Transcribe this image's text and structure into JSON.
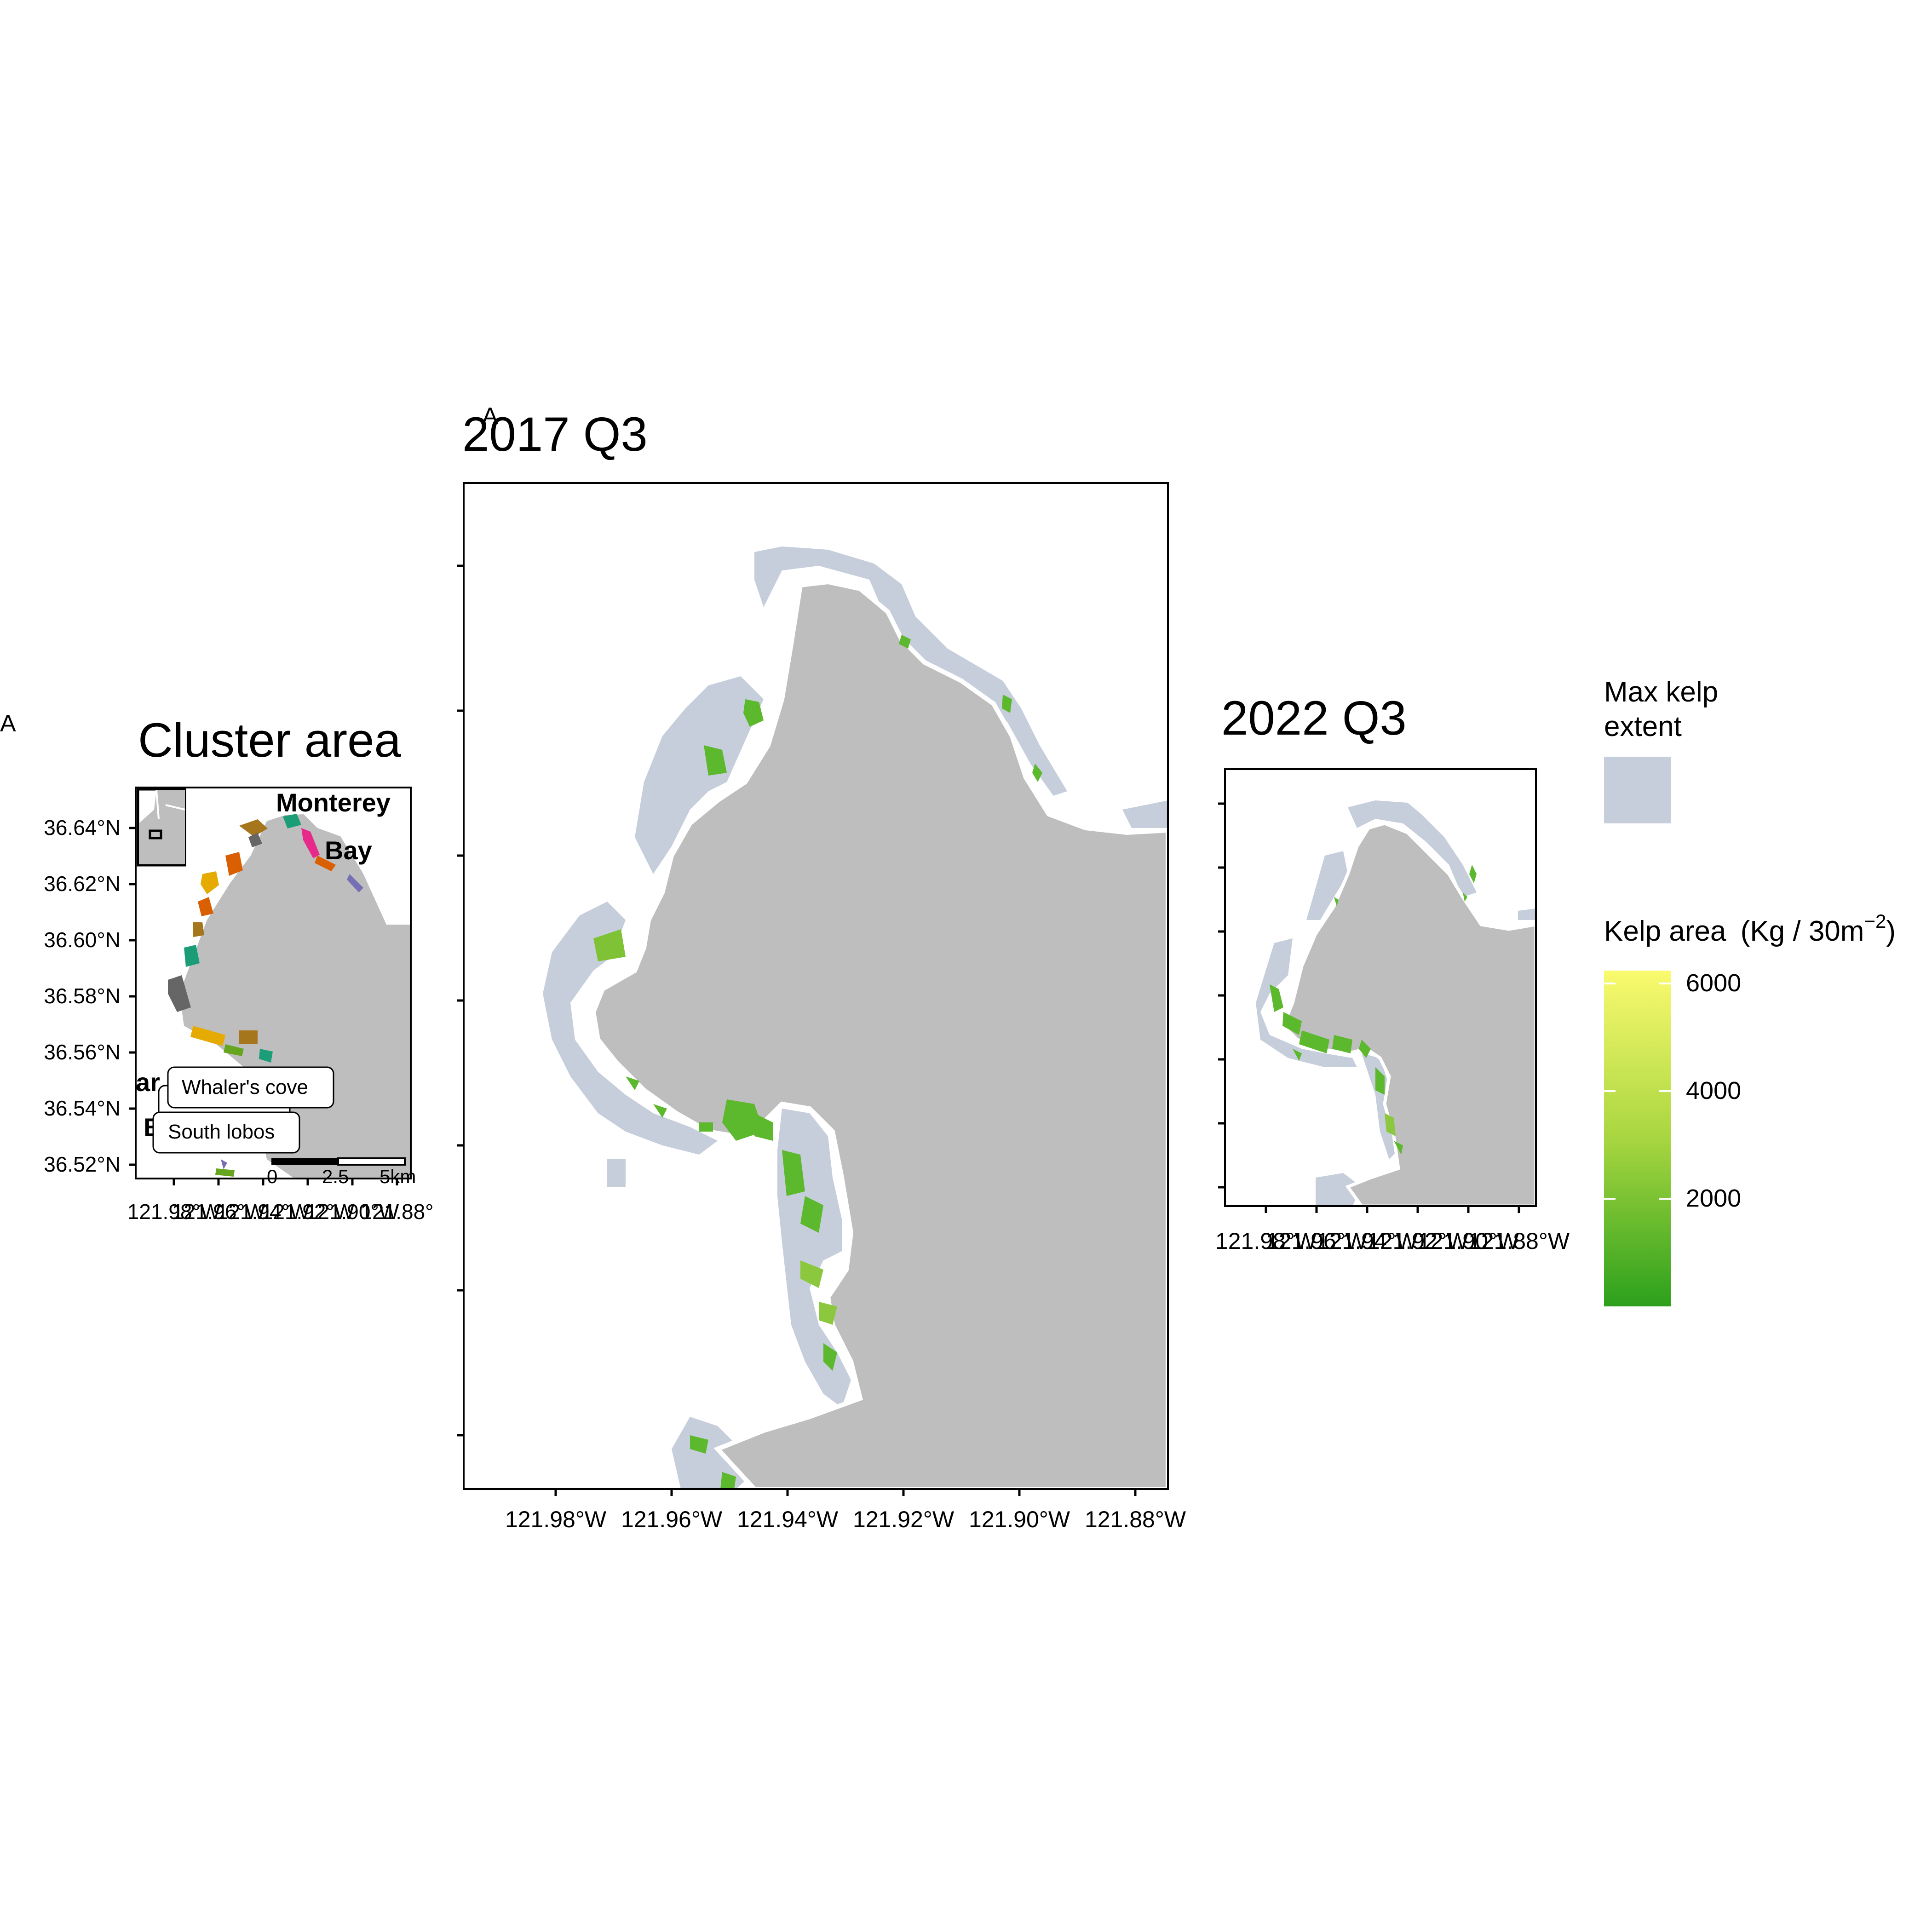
{
  "panel_tags": {
    "left": "A",
    "middle": "A"
  },
  "cluster_panel": {
    "title": "Cluster area",
    "lat_ticks": [
      "36.64°N",
      "36.62°N",
      "36.60°N",
      "36.58°N",
      "36.56°N",
      "36.54°N",
      "36.52°N"
    ],
    "lon_ticks": [
      "121.98°W",
      "121.96°W",
      "121.94°W",
      "121.92°W",
      "121.90°W",
      "121.88°"
    ],
    "place_labels": {
      "monterey": "Monterey",
      "bay": "Bay",
      "left_top": "ar",
      "left_bottom": "B"
    },
    "site_labels": [
      "Whaler's cove",
      "South lobos"
    ],
    "scale_bar": {
      "labels": [
        "0",
        "2.5",
        "5km"
      ]
    },
    "cluster_colors": [
      "#1b9e77",
      "#d95f02",
      "#7570b3",
      "#e7298a",
      "#66a61e",
      "#e6ab02",
      "#a6761d",
      "#666666"
    ]
  },
  "panel_2017": {
    "title": "2017 Q3",
    "lon_ticks": [
      "121.98°W",
      "121.96°W",
      "121.94°W",
      "121.92°W",
      "121.90°W",
      "121.88°W"
    ]
  },
  "panel_2022": {
    "title": "2022 Q3",
    "lon_ticks": [
      "121.98°W",
      "121.96°W",
      "121.94°W",
      "121.92°W",
      "121.90°W",
      "121.88°W"
    ]
  },
  "legend": {
    "extent_title": [
      "Max kelp",
      "extent"
    ],
    "extent_color": "#c6cedc",
    "area_title": "Kelp area",
    "area_unit_prefix": "(Kg / 30m",
    "area_unit_exp": "−2",
    "area_unit_suffix": ")",
    "area_ticks": [
      "6000",
      "4000",
      "2000"
    ],
    "gradient": [
      "#fafa6e",
      "#a8d640",
      "#2ca01c"
    ]
  },
  "colors": {
    "land": "#bebebe",
    "kelp_extent": "#c6cedc",
    "kelp": "#4caf20"
  }
}
